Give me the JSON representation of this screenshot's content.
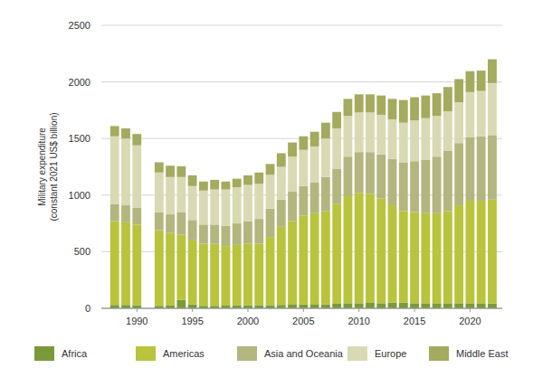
{
  "chart_data": {
    "type": "bar",
    "stacked": true,
    "grid": true,
    "legend": "bottom",
    "ylabel": [
      "Military expenditure",
      "(constant 2021 US$ billion)"
    ],
    "x": [
      1988,
      1989,
      1990,
      1991,
      1992,
      1993,
      1994,
      1995,
      1996,
      1997,
      1998,
      1999,
      2000,
      2001,
      2002,
      2003,
      2004,
      2005,
      2006,
      2007,
      2008,
      2009,
      2010,
      2011,
      2012,
      2013,
      2014,
      2015,
      2016,
      2017,
      2018,
      2019,
      2020,
      2021,
      2022
    ],
    "xlim": [
      1986.8,
      2022.9
    ],
    "xticks": [
      1990,
      1995,
      2000,
      2005,
      2010,
      2015,
      2020
    ],
    "ylim": [
      0,
      2500
    ],
    "yticks": [
      0,
      500,
      1000,
      1500,
      2000,
      2500
    ],
    "series": [
      {
        "name": "Africa",
        "color": "#7a9a3a",
        "values": [
          30,
          30,
          28,
          null,
          22,
          25,
          75,
          35,
          22,
          22,
          24,
          25,
          28,
          28,
          28,
          30,
          32,
          35,
          32,
          35,
          40,
          45,
          45,
          48,
          45,
          50,
          50,
          45,
          45,
          45,
          45,
          45,
          45,
          45,
          42
        ]
      },
      {
        "name": "Americas",
        "color": "#b8c43c",
        "values": [
          740,
          730,
          712,
          null,
          668,
          640,
          575,
          565,
          548,
          548,
          526,
          535,
          542,
          542,
          602,
          690,
          738,
          785,
          808,
          825,
          880,
          945,
          975,
          962,
          925,
          860,
          810,
          805,
          795,
          795,
          815,
          865,
          905,
          905,
          918
        ]
      },
      {
        "name": "Asia and Oceania",
        "color": "#b3b67e",
        "values": [
          150,
          150,
          150,
          null,
          160,
          165,
          200,
          180,
          170,
          170,
          180,
          190,
          200,
          220,
          250,
          240,
          260,
          260,
          270,
          300,
          310,
          350,
          360,
          370,
          390,
          410,
          430,
          450,
          470,
          500,
          530,
          550,
          560,
          570,
          570
        ]
      },
      {
        "name": "Europe",
        "color": "#d9dab4",
        "values": [
          600,
          590,
          550,
          null,
          350,
          330,
          310,
          300,
          300,
          310,
          320,
          320,
          320,
          310,
          300,
          290,
          310,
          320,
          320,
          340,
          360,
          360,
          350,
          350,
          350,
          350,
          350,
          360,
          370,
          360,
          350,
          360,
          400,
          400,
          460
        ]
      },
      {
        "name": "Middle East",
        "color": "#a4aa5e",
        "values": [
          90,
          90,
          100,
          null,
          90,
          100,
          95,
          95,
          80,
          85,
          70,
          75,
          85,
          100,
          95,
          120,
          125,
          120,
          130,
          140,
          145,
          150,
          160,
          160,
          170,
          180,
          200,
          205,
          200,
          200,
          215,
          205,
          185,
          180,
          210
        ]
      }
    ]
  }
}
